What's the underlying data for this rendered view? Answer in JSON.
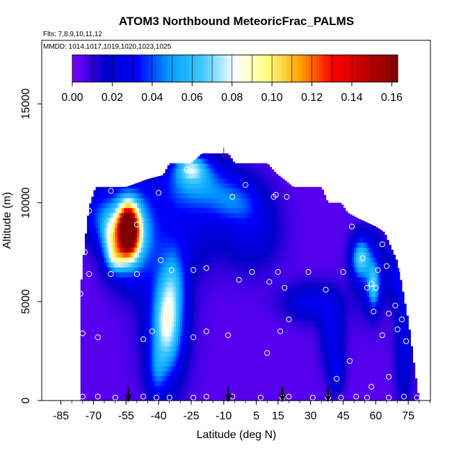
{
  "chart_data": {
    "type": "heatmap",
    "title": "ATOM3 Northbound MeteoricFrac_PALMS",
    "subtitle_flights": "Flts: 7,8,9,10,11,12",
    "subtitle_dates": "MMDD: 1014,1017,1019,1020,1023,1025",
    "xlabel": "Latitude (deg N)",
    "ylabel": "Altitude (m)",
    "xlim": [
      -85,
      85
    ],
    "ylim": [
      0,
      17500
    ],
    "x_ticks": [
      "-85",
      "-70",
      "-55",
      "-40",
      "-25",
      "-10",
      "5",
      "15",
      "30",
      "45",
      "60",
      "75"
    ],
    "x_tick_values": [
      -85,
      -70,
      -55,
      -40,
      -25,
      -10,
      5,
      15,
      30,
      45,
      60,
      75
    ],
    "y_ticks": [
      "0",
      "5000",
      "10000",
      "15000"
    ],
    "y_tick_values": [
      0,
      5000,
      10000,
      15000
    ],
    "colorbar": {
      "range": [
        0,
        0.163
      ],
      "tick_labels": [
        "0.00",
        "0.02",
        "0.04",
        "0.06",
        "0.08",
        "0.10",
        "0.12",
        "0.14",
        "0.16"
      ],
      "tick_values": [
        0,
        0.02,
        0.04,
        0.06,
        0.08,
        0.1,
        0.12,
        0.14,
        0.16
      ],
      "colors": [
        "#7f00ff",
        "#0000c8",
        "#0000ff",
        "#00a0ff",
        "#40c8ff",
        "#ffffff",
        "#ffff80",
        "#ffa000",
        "#ff0000",
        "#c00000",
        "#800000"
      ]
    },
    "field_background": 0.005,
    "envelope": [
      {
        "lat": -76,
        "top": 5500
      },
      {
        "lat": -74,
        "top": 8000
      },
      {
        "lat": -72,
        "top": 9800
      },
      {
        "lat": -69,
        "top": 10800
      },
      {
        "lat": -55,
        "top": 10800
      },
      {
        "lat": -45,
        "top": 11200
      },
      {
        "lat": -38,
        "top": 11400
      },
      {
        "lat": -35,
        "top": 12000
      },
      {
        "lat": -25,
        "top": 12000
      },
      {
        "lat": -20,
        "top": 12500
      },
      {
        "lat": -8,
        "top": 12500
      },
      {
        "lat": -5,
        "top": 12000
      },
      {
        "lat": 10,
        "top": 12000
      },
      {
        "lat": 14,
        "top": 11500
      },
      {
        "lat": 22,
        "top": 10800
      },
      {
        "lat": 35,
        "top": 10800
      },
      {
        "lat": 38,
        "top": 10000
      },
      {
        "lat": 44,
        "top": 10000
      },
      {
        "lat": 47,
        "top": 9500
      },
      {
        "lat": 52,
        "top": 9200
      },
      {
        "lat": 60,
        "top": 8800
      },
      {
        "lat": 64,
        "top": 8500
      },
      {
        "lat": 70,
        "top": 7000
      },
      {
        "lat": 75,
        "top": 4000
      },
      {
        "lat": 78,
        "top": 1500
      },
      {
        "lat": 80,
        "top": 0
      }
    ],
    "features": [
      {
        "lat": -54,
        "alt": 8600,
        "sx": 3.0,
        "sy": 800,
        "value": 0.16
      },
      {
        "lat": -54,
        "alt": 8500,
        "sx": 7.0,
        "sy": 1500,
        "value": 0.075
      },
      {
        "lat": -68,
        "alt": 9400,
        "sx": 6.0,
        "sy": 1000,
        "value": 0.025
      },
      {
        "lat": -62,
        "alt": 8300,
        "sx": 3.0,
        "sy": 700,
        "value": 0.035
      },
      {
        "lat": -60,
        "alt": 7200,
        "sx": 3.0,
        "sy": 500,
        "value": 0.04
      },
      {
        "lat": -22,
        "alt": 11000,
        "sx": 12.0,
        "sy": 900,
        "value": 0.035
      },
      {
        "lat": -25,
        "alt": 11800,
        "sx": 5.0,
        "sy": 500,
        "value": 0.045
      },
      {
        "lat": -5,
        "alt": 10000,
        "sx": 8.0,
        "sy": 700,
        "value": 0.022
      },
      {
        "lat": -28,
        "alt": 9000,
        "sx": 16.0,
        "sy": 1700,
        "value": 0.018
      },
      {
        "lat": 4,
        "alt": 8700,
        "sx": 9.0,
        "sy": 1500,
        "value": 0.018
      },
      {
        "lat": -36,
        "alt": 3800,
        "sx": 4.5,
        "sy": 1600,
        "value": 0.052
      },
      {
        "lat": -37,
        "alt": 4300,
        "sx": 8.0,
        "sy": 2600,
        "value": 0.025
      },
      {
        "lat": -41,
        "alt": 1400,
        "sx": 3.0,
        "sy": 1000,
        "value": 0.022
      },
      {
        "lat": -33,
        "alt": 6000,
        "sx": 4.0,
        "sy": 1200,
        "value": 0.024
      },
      {
        "lat": 30,
        "alt": 5000,
        "sx": 9.0,
        "sy": 700,
        "value": 0.022
      },
      {
        "lat": 40,
        "alt": 3300,
        "sx": 4.0,
        "sy": 1200,
        "value": 0.022
      },
      {
        "lat": 42,
        "alt": 1300,
        "sx": 2.5,
        "sy": 700,
        "value": 0.02
      },
      {
        "lat": 53,
        "alt": 7200,
        "sx": 3.0,
        "sy": 700,
        "value": 0.05
      },
      {
        "lat": 59,
        "alt": 5800,
        "sx": 2.0,
        "sy": 800,
        "value": 0.045
      },
      {
        "lat": 58,
        "alt": 6600,
        "sx": 6.0,
        "sy": 1600,
        "value": 0.02
      },
      {
        "lat": 73,
        "alt": 3000,
        "sx": 3.0,
        "sy": 2500,
        "value": 0.02
      },
      {
        "lat": 70,
        "alt": 6200,
        "sx": 3.0,
        "sy": 800,
        "value": 0.018
      }
    ],
    "sample_points": [
      {
        "lat": -75,
        "alt": 200
      },
      {
        "lat": -68,
        "alt": 200
      },
      {
        "lat": -60,
        "alt": 150
      },
      {
        "lat": -47,
        "alt": 200
      },
      {
        "lat": -41,
        "alt": 150
      },
      {
        "lat": -35,
        "alt": 150
      },
      {
        "lat": -24,
        "alt": 150
      },
      {
        "lat": -18,
        "alt": 200
      },
      {
        "lat": -6,
        "alt": 200
      },
      {
        "lat": 7,
        "alt": 150
      },
      {
        "lat": 17,
        "alt": 150
      },
      {
        "lat": 20,
        "alt": 200
      },
      {
        "lat": 31,
        "alt": 150
      },
      {
        "lat": 38,
        "alt": 150
      },
      {
        "lat": 44,
        "alt": 150
      },
      {
        "lat": 51,
        "alt": 200
      },
      {
        "lat": 56,
        "alt": 150
      },
      {
        "lat": 66,
        "alt": 150
      },
      {
        "lat": 73,
        "alt": 200
      },
      {
        "lat": 79,
        "alt": 150
      },
      {
        "lat": -76,
        "alt": 5400
      },
      {
        "lat": -75,
        "alt": 3400
      },
      {
        "lat": -68,
        "alt": 3200
      },
      {
        "lat": -43,
        "alt": 3500
      },
      {
        "lat": -47,
        "alt": 3100
      },
      {
        "lat": -37,
        "alt": 3400
      },
      {
        "lat": -24,
        "alt": 3200
      },
      {
        "lat": -18,
        "alt": 3500
      },
      {
        "lat": -8,
        "alt": 3300
      },
      {
        "lat": 10,
        "alt": 2400
      },
      {
        "lat": 16,
        "alt": 3500
      },
      {
        "lat": 20,
        "alt": 4100
      },
      {
        "lat": 48,
        "alt": 2000
      },
      {
        "lat": 42,
        "alt": 1100
      },
      {
        "lat": 58,
        "alt": 700
      },
      {
        "lat": 66,
        "alt": 1200
      },
      {
        "lat": 74,
        "alt": 3000
      },
      {
        "lat": 63,
        "alt": 3300
      },
      {
        "lat": 70,
        "alt": 3600
      },
      {
        "lat": 72,
        "alt": 4100
      },
      {
        "lat": 66,
        "alt": 4400
      },
      {
        "lat": 59,
        "alt": 4500
      },
      {
        "lat": 69,
        "alt": 4800
      },
      {
        "lat": 60,
        "alt": 5700
      },
      {
        "lat": 56,
        "alt": 5700
      },
      {
        "lat": 58,
        "alt": 5900
      },
      {
        "lat": -72,
        "alt": 6400
      },
      {
        "lat": -62,
        "alt": 6400
      },
      {
        "lat": -50,
        "alt": 6400
      },
      {
        "lat": -39,
        "alt": 7100
      },
      {
        "lat": -34,
        "alt": 6600
      },
      {
        "lat": -24,
        "alt": 6600
      },
      {
        "lat": -18,
        "alt": 6700
      },
      {
        "lat": -3,
        "alt": 6100
      },
      {
        "lat": 3,
        "alt": 6500
      },
      {
        "lat": 11,
        "alt": 6000
      },
      {
        "lat": 15,
        "alt": 6500
      },
      {
        "lat": 18,
        "alt": 5700
      },
      {
        "lat": 29,
        "alt": 6500
      },
      {
        "lat": 37,
        "alt": 5600
      },
      {
        "lat": 45,
        "alt": 6500
      },
      {
        "lat": 54,
        "alt": 7200
      },
      {
        "lat": 61,
        "alt": 6600
      },
      {
        "lat": 65,
        "alt": 6800
      },
      {
        "lat": 72,
        "alt": 6600
      },
      {
        "lat": 63,
        "alt": 7900
      },
      {
        "lat": 68,
        "alt": 8500
      },
      {
        "lat": -74,
        "alt": 7500
      },
      {
        "lat": -62,
        "alt": 8600
      },
      {
        "lat": -50,
        "alt": 8900
      },
      {
        "lat": -72,
        "alt": 9600
      },
      {
        "lat": -62,
        "alt": 10600
      },
      {
        "lat": -40,
        "alt": 10500
      },
      {
        "lat": -27,
        "alt": 11700
      },
      {
        "lat": -6,
        "alt": 10300
      },
      {
        "lat": 0,
        "alt": 10900
      },
      {
        "lat": 13,
        "alt": 10300
      },
      {
        "lat": 19,
        "alt": 10300
      },
      {
        "lat": 49,
        "alt": 8800
      },
      {
        "lat": 14,
        "alt": 10400
      }
    ],
    "flight_markers_lat": [
      -54,
      -8,
      17,
      38
    ]
  }
}
